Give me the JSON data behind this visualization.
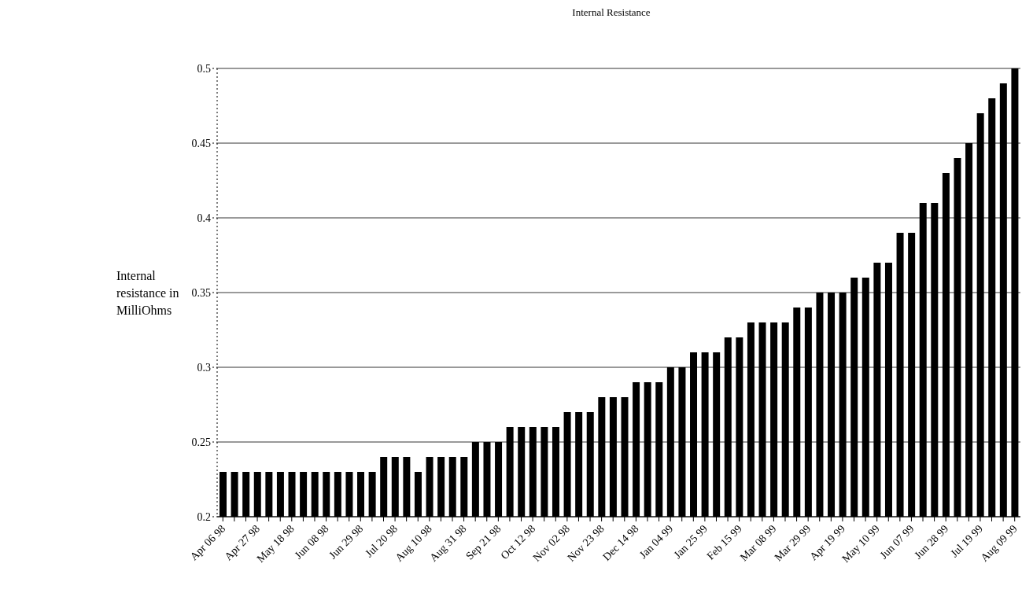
{
  "chart_data": {
    "type": "bar",
    "title": "Internal Resistance",
    "ylabel": "Internal resistance in MilliOhms",
    "categories": [
      "Apr 06 98",
      null,
      null,
      "Apr 27 98",
      null,
      null,
      "May 18 98",
      null,
      null,
      "Jun 08 98",
      null,
      null,
      "Jun 29 98",
      null,
      null,
      "Jul 20 98",
      null,
      null,
      "Aug 10 98",
      null,
      null,
      "Aug 31 98",
      null,
      null,
      "Sep 21 98",
      null,
      null,
      "Oct 12 98",
      null,
      null,
      "Nov 02 98",
      null,
      null,
      "Nov 23 98",
      null,
      null,
      "Dec 14 98",
      null,
      null,
      "Jan 04 99",
      null,
      null,
      "Jan 25 99",
      null,
      null,
      "Feb 15 99",
      null,
      null,
      "Mar 08 99",
      null,
      null,
      "Mar 29 99",
      null,
      null,
      "Apr 19 99",
      null,
      null,
      "May 10 99",
      null,
      null,
      "Jun 07 99",
      null,
      null,
      "Jun 28 99",
      null,
      null,
      "Jul 19 99",
      null,
      null,
      "Aug 09 99"
    ],
    "values": [
      0.23,
      0.23,
      0.23,
      0.23,
      0.23,
      0.23,
      0.23,
      0.23,
      0.23,
      0.23,
      0.23,
      0.23,
      0.23,
      0.23,
      0.24,
      0.24,
      0.24,
      0.23,
      0.24,
      0.24,
      0.24,
      0.24,
      0.25,
      0.25,
      0.25,
      0.26,
      0.26,
      0.26,
      0.26,
      0.26,
      0.27,
      0.27,
      0.27,
      0.28,
      0.28,
      0.28,
      0.29,
      0.29,
      0.29,
      0.3,
      0.3,
      0.31,
      0.31,
      0.31,
      0.32,
      0.32,
      0.33,
      0.33,
      0.33,
      0.33,
      0.34,
      0.34,
      0.35,
      0.35,
      0.35,
      0.36,
      0.36,
      0.37,
      0.37,
      0.39,
      0.39,
      0.41,
      0.41,
      0.43,
      0.44,
      0.45,
      0.47,
      0.48,
      0.49,
      0.5
    ],
    "color": "#000000",
    "ylim": [
      0.2,
      0.5
    ],
    "yticks": [
      0.2,
      0.25,
      0.3,
      0.35,
      0.4,
      0.45,
      0.5
    ],
    "grid": "y"
  }
}
